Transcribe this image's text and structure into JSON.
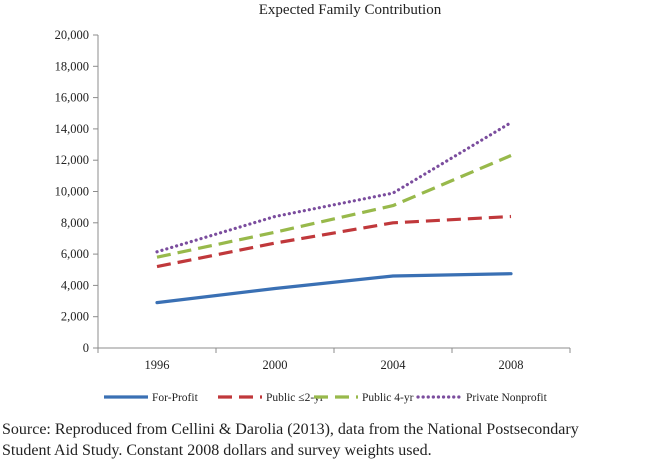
{
  "chart_data": {
    "type": "line",
    "title": "Expected Family Contribution",
    "xlabel": "",
    "ylabel": "",
    "categories": [
      "1996",
      "2000",
      "2004",
      "2008"
    ],
    "ylim": [
      0,
      20000
    ],
    "yticks": [
      "0",
      "2,000",
      "4,000",
      "6,000",
      "8,000",
      "10,000",
      "12,000",
      "14,000",
      "16,000",
      "18,000",
      "20,000"
    ],
    "grid": false,
    "legend_position": "bottom",
    "series": [
      {
        "name": "For-Profit",
        "values": [
          2900,
          3800,
          4600,
          4750
        ],
        "color": "#3a70b4",
        "style": "solid"
      },
      {
        "name": "Public ≤2-yr",
        "values": [
          5200,
          6700,
          8000,
          8400
        ],
        "color": "#c0383b",
        "style": "dashed"
      },
      {
        "name": "Public 4-yr",
        "values": [
          5800,
          7400,
          9100,
          12300
        ],
        "color": "#98b94b",
        "style": "dashed"
      },
      {
        "name": "Private Nonprofit",
        "values": [
          6150,
          8400,
          9900,
          14400
        ],
        "color": "#7b4d9e",
        "style": "dotted"
      }
    ]
  },
  "caption": {
    "line1": "Source: Reproduced from Cellini & Darolia (2013), data from the National Postsecondary",
    "line2": "Student Aid Study. Constant 2008 dollars and survey weights used."
  }
}
